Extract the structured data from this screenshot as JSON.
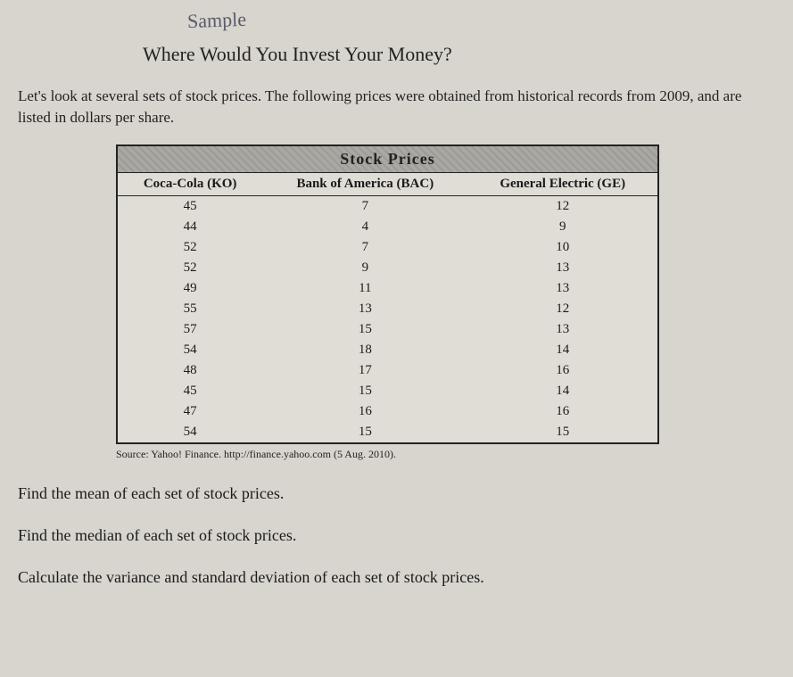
{
  "handwriting": "Sample",
  "title": "Where Would You Invest Your Money?",
  "intro": "Let's look at several sets of stock prices. The following prices were obtained from historical records from 2009, and are listed in dollars per share.",
  "table": {
    "banner": "Stock Prices",
    "columns": [
      "Coca-Cola (KO)",
      "Bank of America (BAC)",
      "General Electric (GE)"
    ],
    "rows": [
      [
        "45",
        "7",
        "12"
      ],
      [
        "44",
        "4",
        "9"
      ],
      [
        "52",
        "7",
        "10"
      ],
      [
        "52",
        "9",
        "13"
      ],
      [
        "49",
        "11",
        "13"
      ],
      [
        "55",
        "13",
        "12"
      ],
      [
        "57",
        "15",
        "13"
      ],
      [
        "54",
        "18",
        "14"
      ],
      [
        "48",
        "17",
        "16"
      ],
      [
        "45",
        "15",
        "14"
      ],
      [
        "47",
        "16",
        "16"
      ],
      [
        "54",
        "15",
        "15"
      ]
    ],
    "banner_bg": "#aaa8a2",
    "border_color": "#222222",
    "cell_bg": "#e0ddd6",
    "font_size_header": 15,
    "font_size_cell": 15
  },
  "source": "Source: Yahoo! Finance. http://finance.yahoo.com (5 Aug. 2010).",
  "questions": [
    "Find the mean of each set of stock prices.",
    "Find the median of each set of stock prices.",
    "Calculate the variance and standard deviation of each set of stock prices."
  ]
}
